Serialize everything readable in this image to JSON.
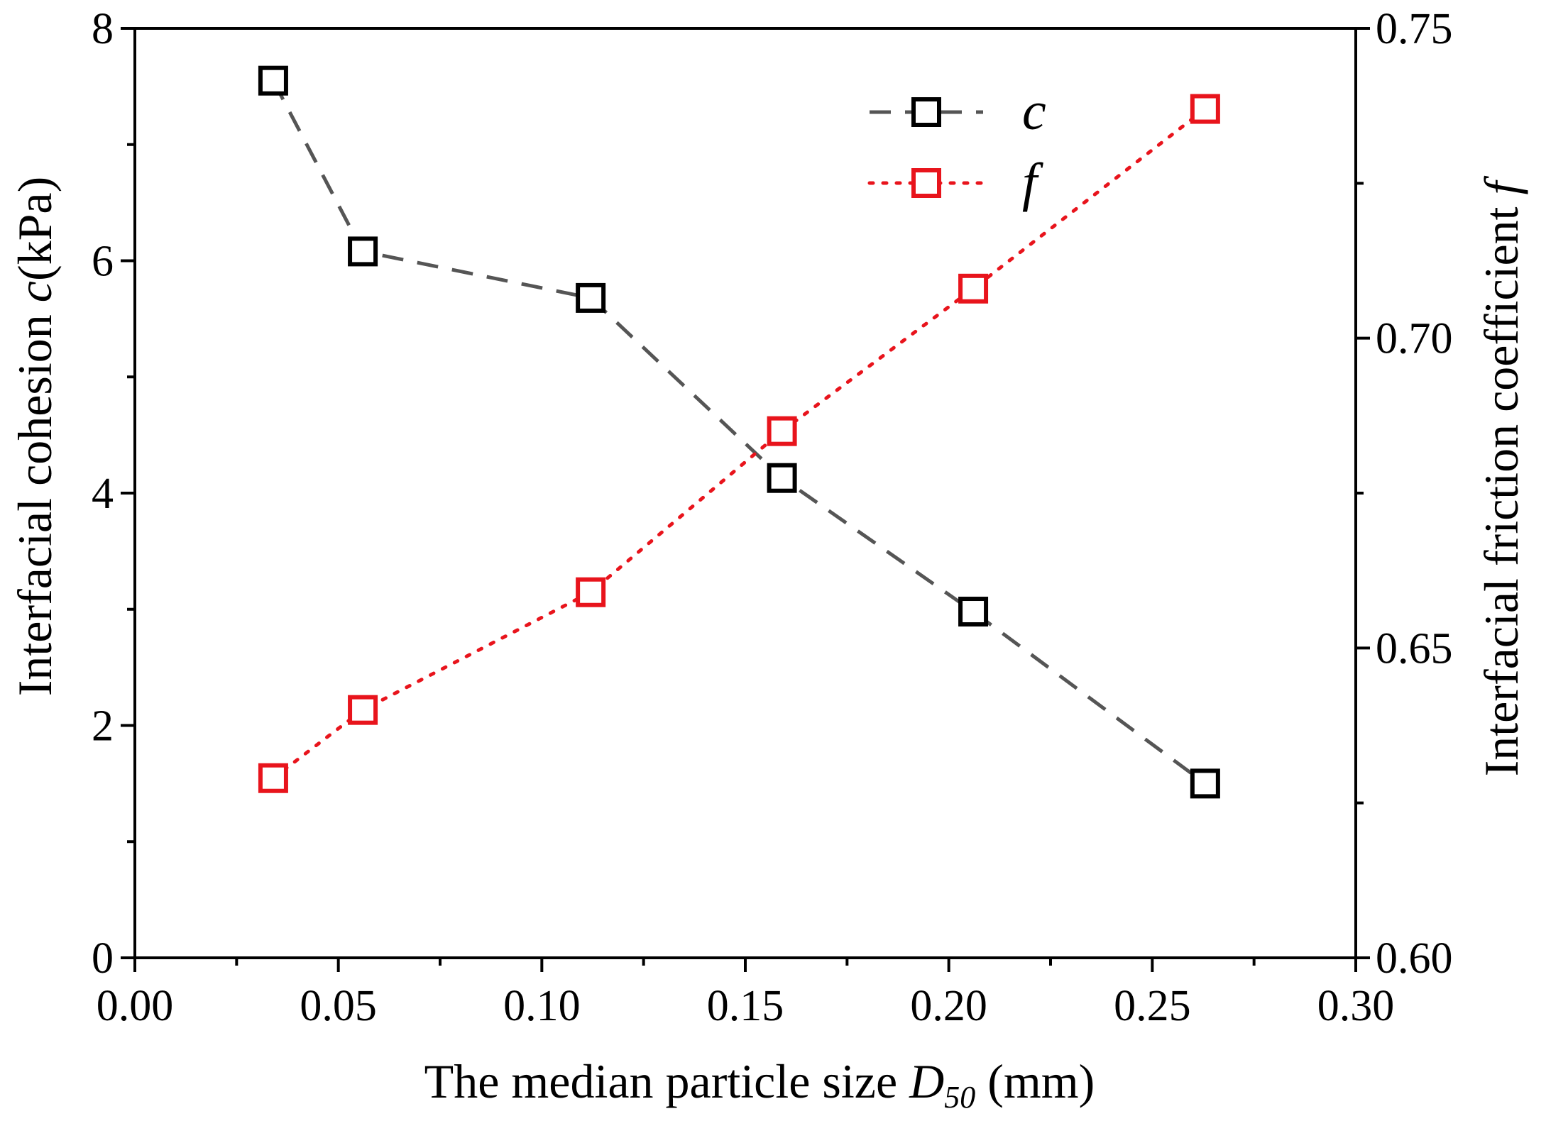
{
  "chart_data": {
    "type": "line",
    "x": [
      0.034,
      0.056,
      0.112,
      0.159,
      0.206,
      0.263
    ],
    "xlabel": {
      "prefix": "The median particle size ",
      "symbol": "D",
      "subscript": "50",
      "suffix": "  (mm)"
    },
    "xlim": [
      0,
      0.3
    ],
    "xticks": [
      0.0,
      0.05,
      0.1,
      0.15,
      0.2,
      0.25,
      0.3
    ],
    "xtick_labels": [
      "0.00",
      "0.05",
      "0.10",
      "0.15",
      "0.20",
      "0.25",
      "0.30"
    ],
    "y_left": {
      "label_prefix": "Interfacial cohesion  ",
      "label_symbol": "c",
      "label_suffix": "(kPa)",
      "lim": [
        0,
        8
      ],
      "ticks": [
        0,
        2,
        4,
        6,
        8
      ],
      "tick_labels": [
        "0",
        "2",
        "4",
        "6",
        "8"
      ]
    },
    "y_right": {
      "label_prefix": "Interfacial friction coefficient  ",
      "label_symbol": "f",
      "lim": [
        0.6,
        0.75
      ],
      "ticks": [
        0.6,
        0.65,
        0.7,
        0.75
      ],
      "tick_labels": [
        "0.60",
        "0.65",
        "0.70",
        "0.75"
      ]
    },
    "series": [
      {
        "name": "c",
        "axis": "left",
        "values": [
          7.55,
          6.08,
          5.68,
          4.13,
          2.98,
          1.5
        ],
        "color": "#000000",
        "line_color": "#555555",
        "line_style": "dashed",
        "marker": "open-square"
      },
      {
        "name": "f",
        "axis": "right",
        "values": [
          0.629,
          0.64,
          0.659,
          0.685,
          0.708,
          0.737
        ],
        "color": "#e8141c",
        "line_color": "#e8141c",
        "line_style": "dotted",
        "marker": "open-square"
      }
    ],
    "legend": {
      "placement": "top-center",
      "entries": [
        "c",
        "f"
      ]
    }
  }
}
